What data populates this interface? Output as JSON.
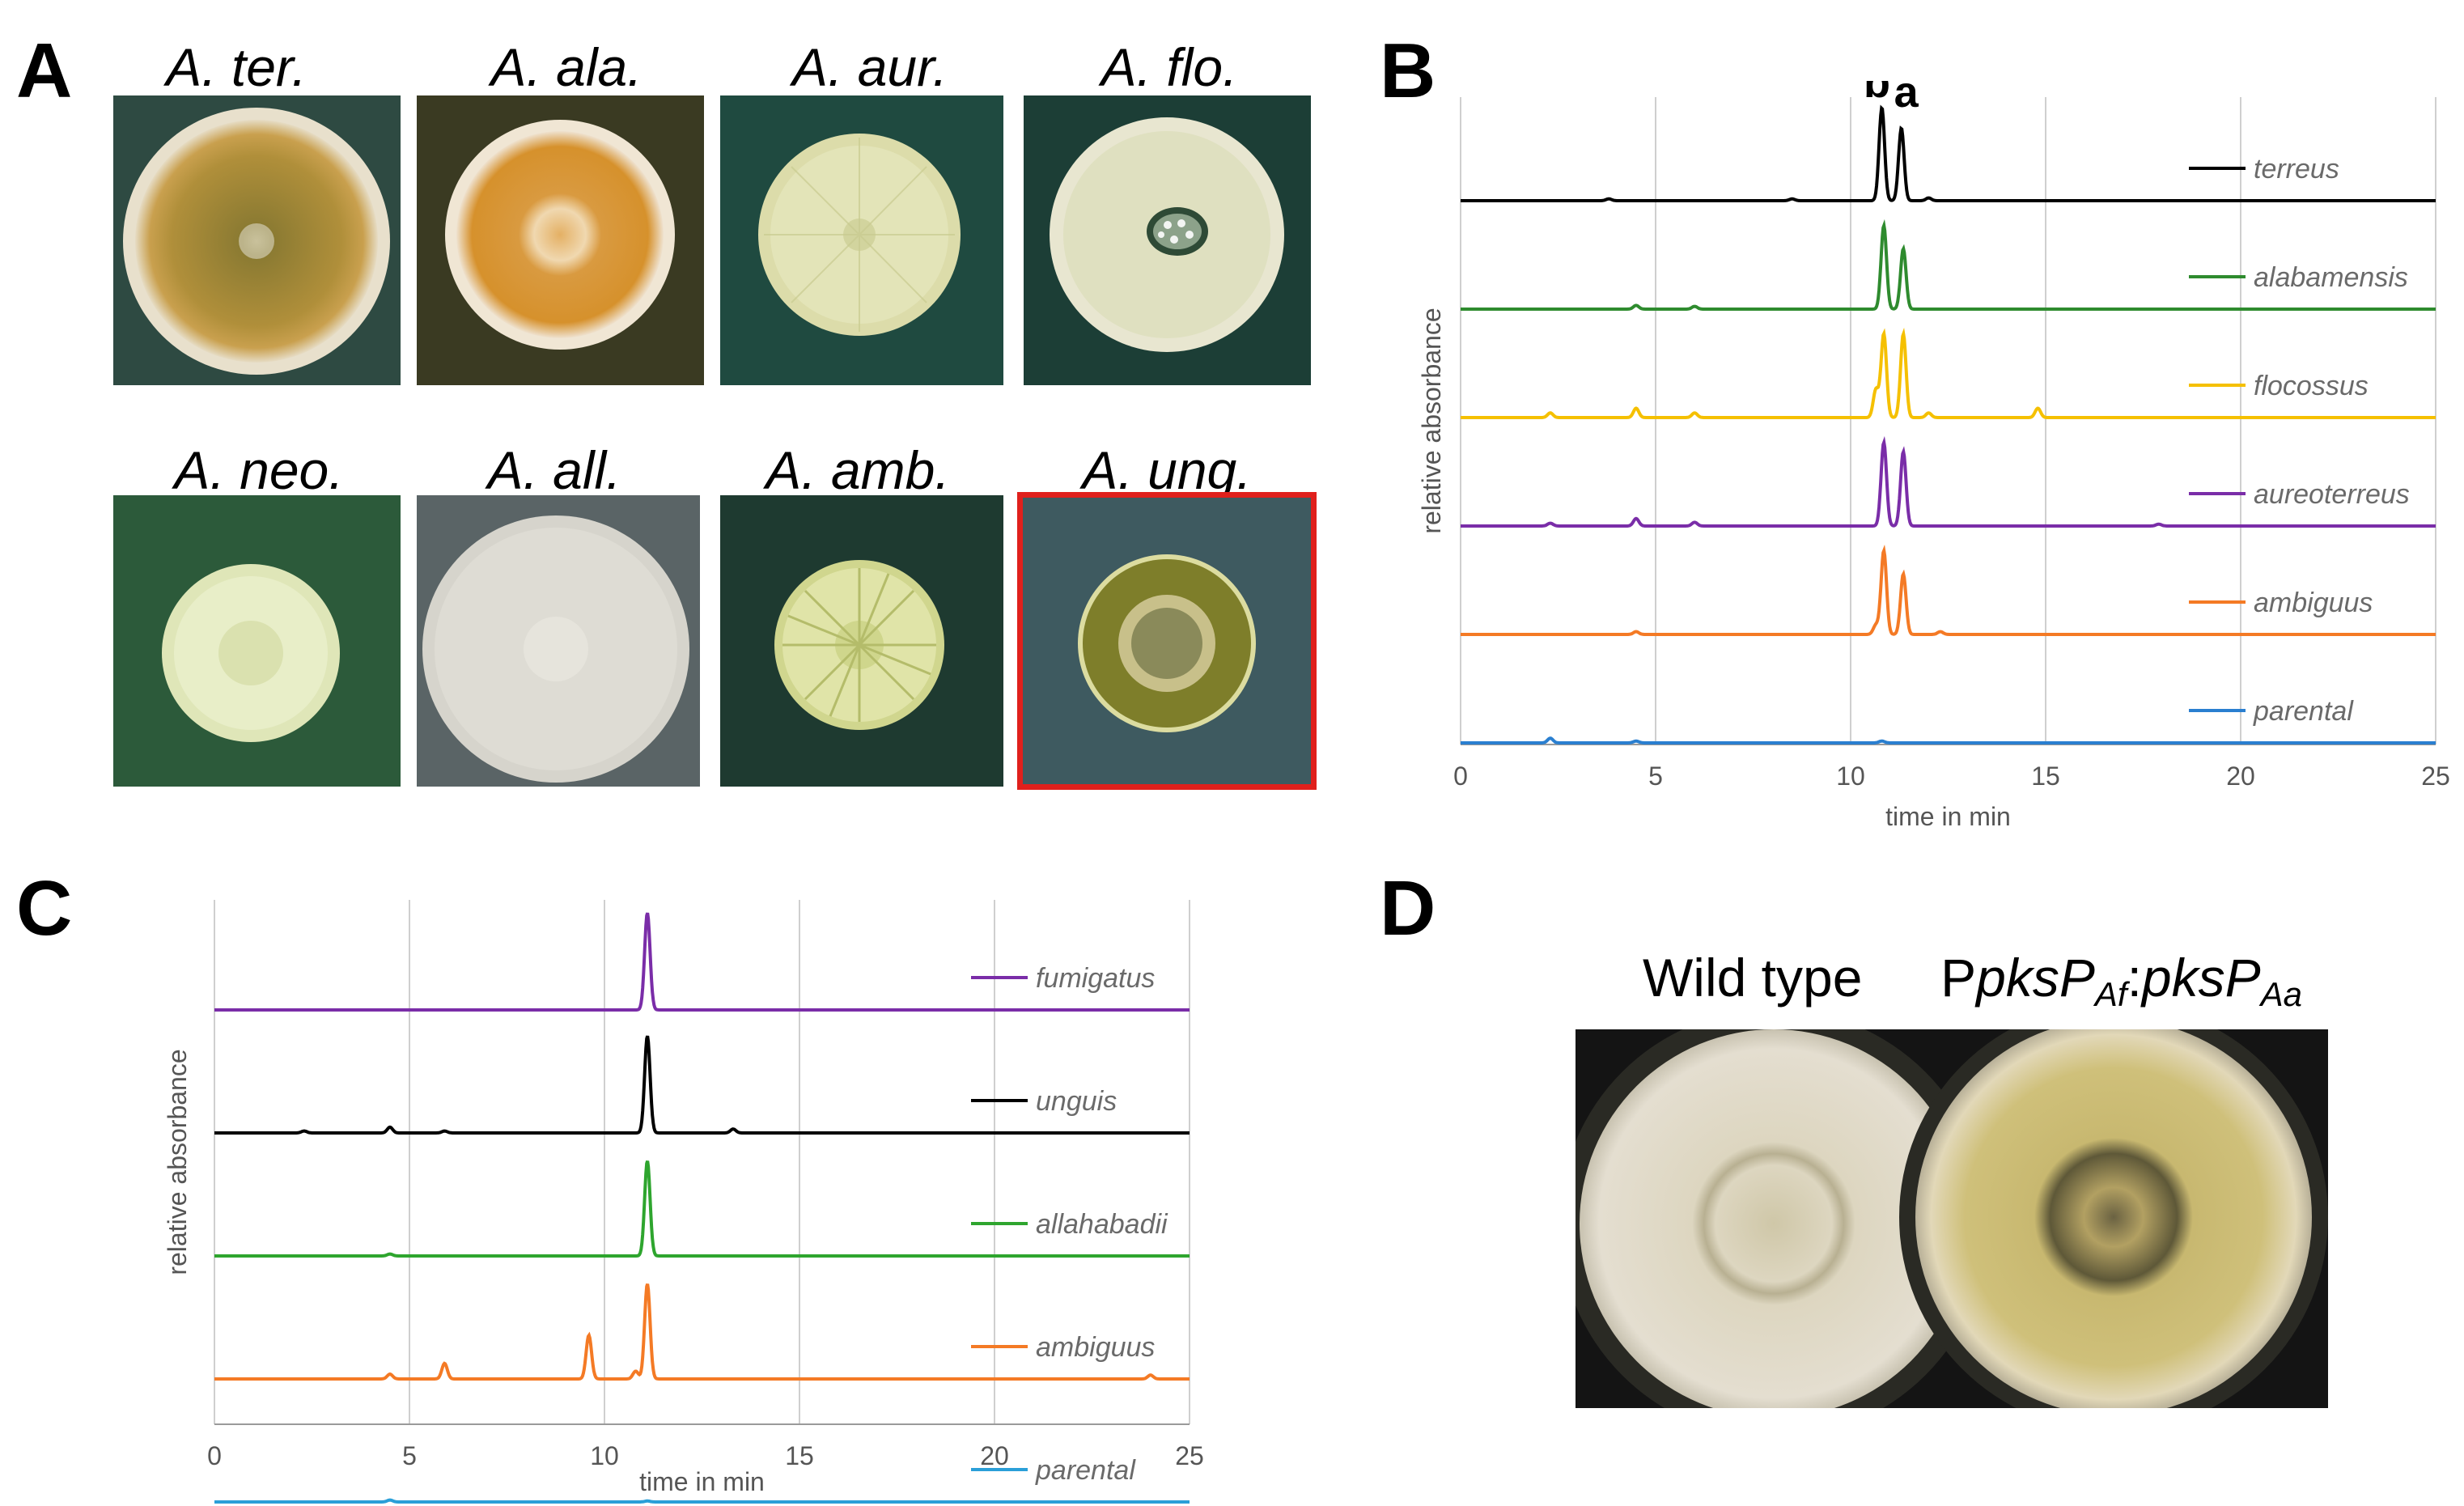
{
  "panels": {
    "A": {
      "letter": "A"
    },
    "B": {
      "letter": "B"
    },
    "C": {
      "letter": "C"
    },
    "D": {
      "letter": "D"
    }
  },
  "panelA": {
    "plates": [
      {
        "label": "A. ter.",
        "highlighted": false
      },
      {
        "label": "A. ala.",
        "highlighted": false
      },
      {
        "label": "A. aur.",
        "highlighted": false
      },
      {
        "label": "A. flo.",
        "highlighted": false
      },
      {
        "label": "A. neo.",
        "highlighted": false
      },
      {
        "label": "A. all.",
        "highlighted": false
      },
      {
        "label": "A. amb.",
        "highlighted": false
      },
      {
        "label": "A. ung.",
        "highlighted": true
      }
    ],
    "highlight_color": "#e0201c"
  },
  "chart_data": [
    {
      "id": "B",
      "type": "line",
      "title": "",
      "xlabel": "time in min",
      "ylabel": "relative absorbance",
      "xlim": [
        0,
        25
      ],
      "xticks": [
        0,
        5,
        10,
        15,
        20,
        25
      ],
      "grid": true,
      "peak_labels": [
        {
          "text": "b",
          "x": 10.8
        },
        {
          "text": "a",
          "x": 11.3
        }
      ],
      "series": [
        {
          "name": "terreus",
          "color": "#000000",
          "peaks": [
            [
              10.8,
              1.0
            ],
            [
              11.3,
              0.78
            ],
            [
              12.0,
              0.03
            ],
            [
              3.8,
              0.02
            ],
            [
              8.5,
              0.02
            ]
          ]
        },
        {
          "name": "alabamensis",
          "color": "#2e8b2e",
          "peaks": [
            [
              10.85,
              0.9
            ],
            [
              11.35,
              0.65
            ],
            [
              4.5,
              0.04
            ],
            [
              6.0,
              0.03
            ]
          ]
        },
        {
          "name": "flocossus",
          "color": "#f5c000",
          "peaks": [
            [
              10.65,
              0.3
            ],
            [
              10.85,
              0.9
            ],
            [
              11.35,
              0.9
            ],
            [
              4.5,
              0.1
            ],
            [
              2.3,
              0.05
            ],
            [
              6.0,
              0.05
            ],
            [
              12.0,
              0.05
            ],
            [
              14.8,
              0.1
            ]
          ]
        },
        {
          "name": "aureoterreus",
          "color": "#7a2da8",
          "peaks": [
            [
              10.85,
              0.9
            ],
            [
              11.35,
              0.8
            ],
            [
              4.5,
              0.08
            ],
            [
              6.0,
              0.04
            ],
            [
              2.3,
              0.03
            ],
            [
              17.9,
              0.02
            ]
          ]
        },
        {
          "name": "ambiguus",
          "color": "#f47a25",
          "peaks": [
            [
              10.65,
              0.1
            ],
            [
              10.85,
              0.9
            ],
            [
              11.35,
              0.65
            ],
            [
              4.5,
              0.03
            ],
            [
              12.3,
              0.03
            ]
          ]
        },
        {
          "name": "parental",
          "color": "#2a7fd0",
          "peaks": [
            [
              2.3,
              0.05
            ],
            [
              4.5,
              0.02
            ],
            [
              10.8,
              0.02
            ]
          ]
        }
      ]
    },
    {
      "id": "C",
      "type": "line",
      "title": "",
      "xlabel": "time in min",
      "ylabel": "relative absorbance",
      "xlim": [
        0,
        25
      ],
      "xticks": [
        0,
        5,
        10,
        15,
        20,
        25
      ],
      "grid": true,
      "series": [
        {
          "name": "fumigatus",
          "color": "#7a2da8",
          "peaks": [
            [
              11.1,
              1.0
            ]
          ]
        },
        {
          "name": "unguis",
          "color": "#000000",
          "peaks": [
            [
              11.1,
              1.0
            ],
            [
              4.5,
              0.06
            ],
            [
              2.3,
              0.02
            ],
            [
              13.3,
              0.04
            ],
            [
              5.9,
              0.02
            ]
          ]
        },
        {
          "name": "allahabadii",
          "color": "#2ea52e",
          "peaks": [
            [
              11.1,
              0.98
            ],
            [
              4.5,
              0.02
            ]
          ]
        },
        {
          "name": "ambiguus",
          "color": "#f47a25",
          "peaks": [
            [
              11.1,
              0.98
            ],
            [
              9.6,
              0.45
            ],
            [
              5.9,
              0.16
            ],
            [
              4.5,
              0.05
            ],
            [
              24.0,
              0.04
            ],
            [
              10.8,
              0.08
            ]
          ]
        },
        {
          "name": "parental",
          "color": "#2a9fd8",
          "peaks": [
            [
              4.5,
              0.02
            ],
            [
              11.1,
              0.01
            ]
          ]
        }
      ]
    }
  ],
  "panelD": {
    "title_left": "Wild type",
    "title_right_prefix": "P",
    "title_right_gene1": "pksP",
    "title_right_sub1": "Af",
    "title_right_colon": ":",
    "title_right_gene2": "pksP",
    "title_right_sub2": "Aa"
  }
}
